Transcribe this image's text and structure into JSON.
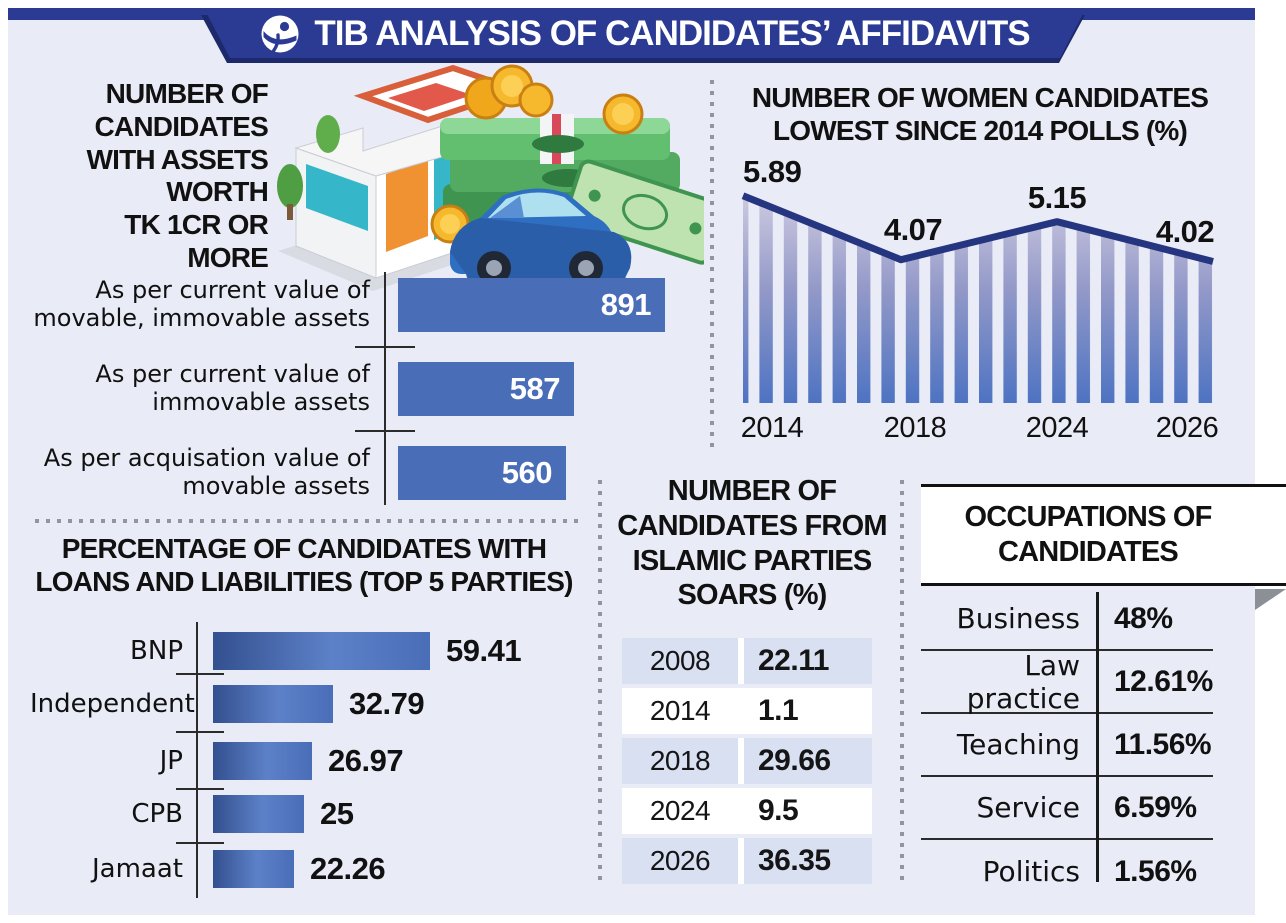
{
  "header": {
    "title": "TIB ANALYSIS OF CANDIDATES’ AFFIDAVITS",
    "logo_icon": "transparency-international-globe-icon"
  },
  "sections": {
    "assets": {
      "title": "NUMBER OF\nCANDIDATES\nWITH ASSETS\nWORTH\nTK 1CR OR MORE"
    },
    "women": {
      "title": "NUMBER OF WOMEN CANDIDATES\nLOWEST SINCE 2014 POLLS (%)"
    },
    "loans": {
      "title": "PERCENTAGE OF CANDIDATES WITH\nLOANS AND LIABILITIES (TOP 5 PARTIES)"
    },
    "islamic": {
      "title": "NUMBER OF\nCANDIDATES FROM\nISLAMIC PARTIES\nSOARS (%)"
    },
    "occupations": {
      "title": "OCCUPATIONS OF\nCANDIDATES"
    }
  },
  "illustration": {
    "items": [
      "house",
      "car",
      "money-stacks",
      "gold-coins",
      "banknote"
    ]
  },
  "colors": {
    "panel_bg": "#e9ecf6",
    "banner_blue": "#2b3b94",
    "banner_shadow": "#1c2a6b",
    "bar_blue": "#4a6db8",
    "bar_gradient_dark": "#33508f",
    "bar_gradient_light": "#5d81c8",
    "line_navy": "#25357f",
    "stripe_top": "#cdc9e0",
    "stripe_bottom": "#4e73c2",
    "table_row_blue": "#d9e0f2",
    "fold_gray": "#8b9097"
  },
  "chart_data": [
    {
      "id": "assets",
      "type": "bar",
      "orientation": "horizontal",
      "title": "NUMBER OF CANDIDATES WITH ASSETS WORTH TK 1CR OR MORE",
      "categories": [
        "As per current value of\nmovable, immovable assets",
        "As per current value of\nimmovable assets",
        "As per acquisation value of\nmovable assets"
      ],
      "values": [
        891,
        587,
        560
      ],
      "value_label_position": "inside-right",
      "xlim": [
        0,
        891
      ]
    },
    {
      "id": "women",
      "type": "line",
      "style": "striped-area-under-line",
      "title": "NUMBER OF WOMEN CANDIDATES LOWEST SINCE 2014 POLLS (%)",
      "x": [
        "2014",
        "2018",
        "2024",
        "2026"
      ],
      "values": [
        5.89,
        4.07,
        5.15,
        4.02
      ],
      "ylim": [
        0,
        6.5
      ],
      "grid": false,
      "legend": "none"
    },
    {
      "id": "loans",
      "type": "bar",
      "orientation": "horizontal",
      "title": "PERCENTAGE OF CANDIDATES WITH LOANS AND LIABILITIES (TOP 5 PARTIES)",
      "categories": [
        "BNP",
        "Independent",
        "JP",
        "CPB",
        "Jamaat"
      ],
      "values": [
        59.41,
        32.79,
        26.97,
        25,
        22.26
      ],
      "value_label_position": "outside-right",
      "xlim": [
        0,
        59.41
      ]
    },
    {
      "id": "islamic",
      "type": "table",
      "title": "NUMBER OF CANDIDATES FROM ISLAMIC PARTIES SOARS (%)",
      "columns": [
        "year",
        "percent"
      ],
      "rows": [
        [
          "2008",
          22.11
        ],
        [
          "2014",
          1.1
        ],
        [
          "2018",
          29.66
        ],
        [
          "2024",
          9.5
        ],
        [
          "2026",
          36.35
        ]
      ]
    },
    {
      "id": "occupations",
      "type": "table",
      "title": "OCCUPATIONS OF CANDIDATES",
      "columns": [
        "occupation",
        "share"
      ],
      "rows": [
        [
          "Business",
          "48%"
        ],
        [
          "Law practice",
          "12.61%"
        ],
        [
          "Teaching",
          "11.56%"
        ],
        [
          "Service",
          "6.59%"
        ],
        [
          "Politics",
          "1.56%"
        ]
      ]
    }
  ]
}
